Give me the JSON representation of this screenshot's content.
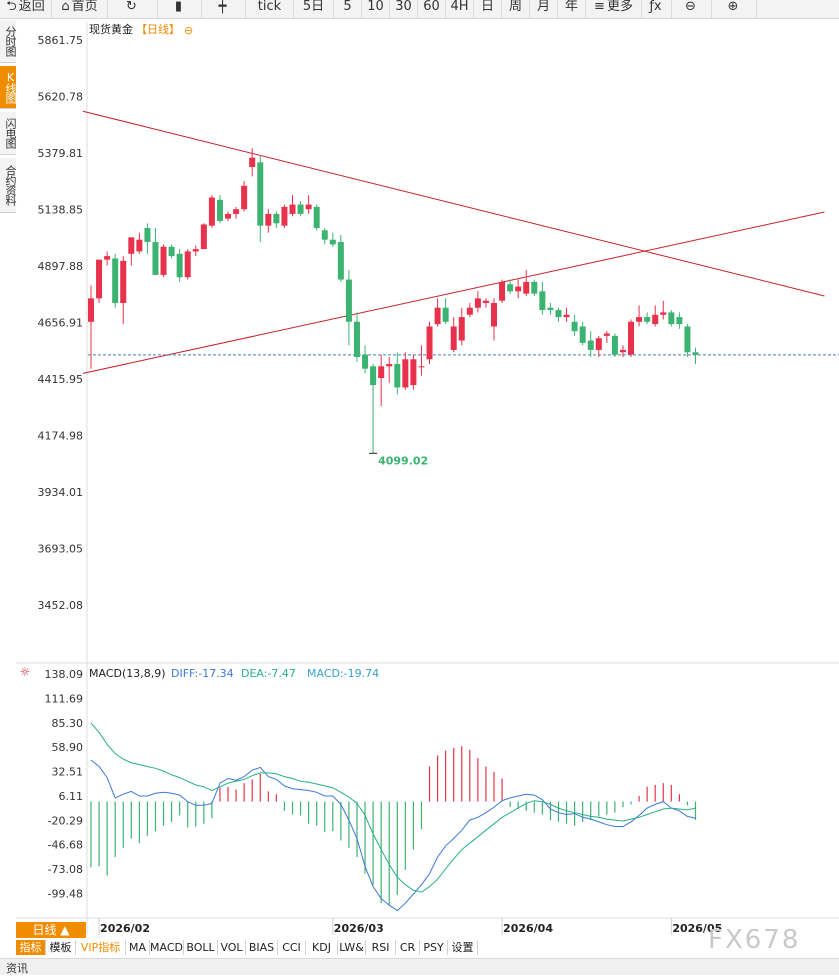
{
  "toolbar": {
    "items": [
      {
        "label": "返回",
        "icon": "back-arrow-icon"
      },
      {
        "label": "首页",
        "icon": "home-icon"
      },
      {
        "label": "",
        "icon": "refresh-icon"
      },
      {
        "label": "",
        "icon": "bar-chart-icon"
      },
      {
        "label": "",
        "icon": "candlestick-icon"
      },
      {
        "label": "tick",
        "icon": ""
      },
      {
        "label": "5日",
        "icon": ""
      },
      {
        "label": "5",
        "icon": ""
      },
      {
        "label": "10",
        "icon": ""
      },
      {
        "label": "30",
        "icon": ""
      },
      {
        "label": "60",
        "icon": ""
      },
      {
        "label": "4H",
        "icon": ""
      },
      {
        "label": "日",
        "icon": ""
      },
      {
        "label": "周",
        "icon": ""
      },
      {
        "label": "月",
        "icon": ""
      },
      {
        "label": "年",
        "icon": ""
      },
      {
        "label": "更多",
        "icon": "menu-icon"
      },
      {
        "label": "",
        "icon": "function-icon"
      },
      {
        "label": "",
        "icon": "zoom-out-icon"
      },
      {
        "label": "",
        "icon": "zoom-in-icon"
      }
    ]
  },
  "side_tabs": [
    "分时图",
    "K线图",
    "闪电图",
    "合约资料"
  ],
  "side_tab_active": 1,
  "header": {
    "title": "现货黄金",
    "period_label": "【日线】",
    "collapse_symbol": "⊖"
  },
  "colors": {
    "up": "#e8314a",
    "down": "#3cb371",
    "trendline": "#c8202a",
    "price_line": "#4a7fb0",
    "diff_line": "#3c78d8",
    "dea_line": "#27ae8a",
    "accent": "#f08c00"
  },
  "macd_header": {
    "name": "MACD(13,8,9)",
    "diff_label": "DIFF:-17.34",
    "dea_label": "DEA:-7.47",
    "macd_label": "MACD:-19.74"
  },
  "period_tag": "日线 ▲",
  "indicator_tabs": [
    "指标",
    "模板",
    "VIP指标",
    "MA",
    "MACD",
    "BOLL",
    "VOL",
    "BIAS",
    "CCI",
    "KDJ",
    "LW&",
    "RSI",
    "CR",
    "PSY",
    "设置"
  ],
  "indicator_active": 0,
  "watermark": "FX678",
  "bottom_strip_text": "资讯",
  "chart_data": [
    {
      "type": "candlestick",
      "title": "现货黄金",
      "y_ticks": [
        "5861.75",
        "5620.78",
        "5379.81",
        "5138.85",
        "4897.88",
        "4656.91",
        "4415.95",
        "4174.98",
        "3934.01",
        "3693.05",
        "3452.08"
      ],
      "ylim": [
        3452.08,
        5861.75
      ],
      "x_labels": [
        "2026/02",
        "2026/03",
        "2026/04",
        "2026/05"
      ],
      "x_label_index": [
        1,
        30,
        51,
        72
      ],
      "low_annotation": {
        "index": 35,
        "label": "4099.02",
        "value": 4099.02
      },
      "current_price": 4519,
      "trendlines": [
        {
          "from": {
            "index": -1,
            "value": 5558
          },
          "to": {
            "index": 91,
            "value": 4770
          }
        },
        {
          "from": {
            "index": -1,
            "value": 4440
          },
          "to": {
            "index": 91,
            "value": 5128
          }
        }
      ],
      "candles": [
        {
          "o": 4660,
          "h": 4815,
          "l": 4460,
          "c": 4760
        },
        {
          "o": 4760,
          "h": 4910,
          "l": 4740,
          "c": 4925
        },
        {
          "o": 4925,
          "h": 4960,
          "l": 4900,
          "c": 4940
        },
        {
          "o": 4930,
          "h": 4950,
          "l": 4720,
          "c": 4740
        },
        {
          "o": 4740,
          "h": 4940,
          "l": 4650,
          "c": 4920
        },
        {
          "o": 4950,
          "h": 5020,
          "l": 4900,
          "c": 5020
        },
        {
          "o": 4960,
          "h": 5040,
          "l": 4950,
          "c": 5010
        },
        {
          "o": 5060,
          "h": 5080,
          "l": 4950,
          "c": 5000
        },
        {
          "o": 5000,
          "h": 5060,
          "l": 4860,
          "c": 4860
        },
        {
          "o": 4860,
          "h": 4990,
          "l": 4850,
          "c": 4980
        },
        {
          "o": 4980,
          "h": 4990,
          "l": 4930,
          "c": 4940
        },
        {
          "o": 4950,
          "h": 4970,
          "l": 4830,
          "c": 4850
        },
        {
          "o": 4850,
          "h": 4970,
          "l": 4840,
          "c": 4960
        },
        {
          "o": 4960,
          "h": 4985,
          "l": 4940,
          "c": 4970
        },
        {
          "o": 4970,
          "h": 5080,
          "l": 4970,
          "c": 5075
        },
        {
          "o": 5070,
          "h": 5200,
          "l": 5060,
          "c": 5190
        },
        {
          "o": 5180,
          "h": 5200,
          "l": 5080,
          "c": 5090
        },
        {
          "o": 5100,
          "h": 5130,
          "l": 5090,
          "c": 5120
        },
        {
          "o": 5120,
          "h": 5150,
          "l": 5100,
          "c": 5140
        },
        {
          "o": 5140,
          "h": 5260,
          "l": 5130,
          "c": 5240
        },
        {
          "o": 5320,
          "h": 5400,
          "l": 5280,
          "c": 5360
        },
        {
          "o": 5340,
          "h": 5370,
          "l": 5000,
          "c": 5070
        },
        {
          "o": 5070,
          "h": 5140,
          "l": 5040,
          "c": 5120
        },
        {
          "o": 5120,
          "h": 5130,
          "l": 5060,
          "c": 5080
        },
        {
          "o": 5070,
          "h": 5160,
          "l": 5060,
          "c": 5150
        },
        {
          "o": 5120,
          "h": 5200,
          "l": 5110,
          "c": 5160
        },
        {
          "o": 5160,
          "h": 5175,
          "l": 5110,
          "c": 5120
        },
        {
          "o": 5140,
          "h": 5200,
          "l": 5120,
          "c": 5160
        },
        {
          "o": 5150,
          "h": 5160,
          "l": 5050,
          "c": 5060
        },
        {
          "o": 5050,
          "h": 5060,
          "l": 4990,
          "c": 5010
        },
        {
          "o": 5010,
          "h": 5040,
          "l": 4980,
          "c": 4990
        },
        {
          "o": 5000,
          "h": 5030,
          "l": 4830,
          "c": 4840
        },
        {
          "o": 4840,
          "h": 4880,
          "l": 4560,
          "c": 4660
        },
        {
          "o": 4660,
          "h": 4700,
          "l": 4490,
          "c": 4510
        },
        {
          "o": 4520,
          "h": 4560,
          "l": 4440,
          "c": 4460
        },
        {
          "o": 4470,
          "h": 4480,
          "l": 4099,
          "c": 4390
        },
        {
          "o": 4420,
          "h": 4520,
          "l": 4300,
          "c": 4470
        },
        {
          "o": 4470,
          "h": 4510,
          "l": 4400,
          "c": 4480
        },
        {
          "o": 4480,
          "h": 4530,
          "l": 4350,
          "c": 4380
        },
        {
          "o": 4380,
          "h": 4530,
          "l": 4370,
          "c": 4500
        },
        {
          "o": 4390,
          "h": 4520,
          "l": 4370,
          "c": 4500
        },
        {
          "o": 4470,
          "h": 4560,
          "l": 4430,
          "c": 4470
        },
        {
          "o": 4500,
          "h": 4660,
          "l": 4480,
          "c": 4640
        },
        {
          "o": 4650,
          "h": 4760,
          "l": 4640,
          "c": 4720
        },
        {
          "o": 4720,
          "h": 4760,
          "l": 4650,
          "c": 4660
        },
        {
          "o": 4540,
          "h": 4680,
          "l": 4530,
          "c": 4640
        },
        {
          "o": 4580,
          "h": 4720,
          "l": 4560,
          "c": 4680
        },
        {
          "o": 4690,
          "h": 4740,
          "l": 4680,
          "c": 4720
        },
        {
          "o": 4720,
          "h": 4790,
          "l": 4700,
          "c": 4760
        },
        {
          "o": 4740,
          "h": 4760,
          "l": 4720,
          "c": 4750
        },
        {
          "o": 4640,
          "h": 4760,
          "l": 4580,
          "c": 4740
        },
        {
          "o": 4750,
          "h": 4840,
          "l": 4740,
          "c": 4830
        },
        {
          "o": 4820,
          "h": 4840,
          "l": 4780,
          "c": 4790
        },
        {
          "o": 4790,
          "h": 4840,
          "l": 4760,
          "c": 4810
        },
        {
          "o": 4780,
          "h": 4880,
          "l": 4770,
          "c": 4830
        },
        {
          "o": 4830,
          "h": 4840,
          "l": 4770,
          "c": 4780
        },
        {
          "o": 4790,
          "h": 4830,
          "l": 4690,
          "c": 4710
        },
        {
          "o": 4720,
          "h": 4740,
          "l": 4690,
          "c": 4710
        },
        {
          "o": 4710,
          "h": 4720,
          "l": 4660,
          "c": 4680
        },
        {
          "o": 4680,
          "h": 4720,
          "l": 4660,
          "c": 4690
        },
        {
          "o": 4660,
          "h": 4690,
          "l": 4600,
          "c": 4620
        },
        {
          "o": 4640,
          "h": 4660,
          "l": 4560,
          "c": 4570
        },
        {
          "o": 4580,
          "h": 4620,
          "l": 4510,
          "c": 4540
        },
        {
          "o": 4540,
          "h": 4600,
          "l": 4510,
          "c": 4590
        },
        {
          "o": 4600,
          "h": 4620,
          "l": 4570,
          "c": 4610
        },
        {
          "o": 4600,
          "h": 4610,
          "l": 4510,
          "c": 4520
        },
        {
          "o": 4530,
          "h": 4560,
          "l": 4510,
          "c": 4540
        },
        {
          "o": 4520,
          "h": 4670,
          "l": 4510,
          "c": 4660
        },
        {
          "o": 4660,
          "h": 4730,
          "l": 4640,
          "c": 4680
        },
        {
          "o": 4680,
          "h": 4700,
          "l": 4650,
          "c": 4660
        },
        {
          "o": 4650,
          "h": 4730,
          "l": 4640,
          "c": 4690
        },
        {
          "o": 4690,
          "h": 4750,
          "l": 4670,
          "c": 4700
        },
        {
          "o": 4700,
          "h": 4710,
          "l": 4640,
          "c": 4650
        },
        {
          "o": 4680,
          "h": 4700,
          "l": 4630,
          "c": 4650
        },
        {
          "o": 4640,
          "h": 4650,
          "l": 4510,
          "c": 4530
        },
        {
          "o": 4530,
          "h": 4550,
          "l": 4480,
          "c": 4519
        }
      ]
    },
    {
      "type": "macd",
      "title": "MACD(13,8,9)",
      "y_ticks": [
        "138.09",
        "111.69",
        "85.30",
        "58.90",
        "32.51",
        "6.11",
        "-20.29",
        "-46.68",
        "-73.08",
        "-99.48"
      ],
      "ylim": [
        -126,
        150
      ],
      "series": [
        {
          "name": "DIFF",
          "values": [
            45,
            38,
            26,
            4,
            8,
            11,
            6,
            6,
            9,
            10,
            9,
            7,
            0,
            -4,
            -4,
            -2,
            20,
            25,
            23,
            27,
            34,
            37,
            27,
            24,
            17,
            14,
            13,
            12,
            10,
            6,
            6,
            -3,
            -20,
            -40,
            -70,
            -92,
            -105,
            -112,
            -118,
            -110,
            -100,
            -90,
            -78,
            -60,
            -48,
            -40,
            -31,
            -20,
            -17,
            -12,
            -6,
            1,
            4,
            6,
            8,
            7,
            2,
            -8,
            -12,
            -14,
            -13,
            -17,
            -19,
            -22,
            -25,
            -27,
            -27,
            -22,
            -15,
            -7,
            -3,
            0,
            -7,
            -10,
            -16,
            -18
          ]
        },
        {
          "name": "DEA",
          "values": [
            85,
            75,
            62,
            52,
            46,
            42,
            40,
            38,
            36,
            33,
            29,
            26,
            22,
            18,
            16,
            12,
            16,
            20,
            22,
            24,
            28,
            31,
            31,
            30,
            27,
            25,
            22,
            21,
            19,
            17,
            15,
            10,
            5,
            -2,
            -15,
            -35,
            -52,
            -68,
            -82,
            -90,
            -96,
            -98,
            -92,
            -84,
            -73,
            -62,
            -52,
            -45,
            -38,
            -31,
            -24,
            -17,
            -12,
            -7,
            -2,
            1,
            0,
            -3,
            -7,
            -10,
            -12,
            -14,
            -16,
            -17,
            -19,
            -20,
            -21,
            -19,
            -17,
            -14,
            -11,
            -8,
            -7,
            -8,
            -9,
            -7
          ]
        },
        {
          "name": "MACD",
          "values": [
            -71,
            -70,
            -80,
            -60,
            -50,
            -40,
            -45,
            -37,
            -32,
            -26,
            -22,
            -15,
            -28,
            -27,
            -24,
            -18,
            15,
            16,
            13,
            20,
            24,
            30,
            11,
            8,
            -10,
            -14,
            -15,
            -24,
            -26,
            -33,
            -32,
            -42,
            -50,
            -60,
            -78,
            -90,
            -110,
            -112,
            -101,
            -74,
            -52,
            -30,
            38,
            50,
            55,
            58,
            60,
            56,
            47,
            38,
            32,
            25,
            -6,
            -8,
            -10,
            -12,
            -14,
            -20,
            -22,
            -24,
            -26,
            -22,
            -20,
            -16,
            -14,
            -12,
            -6,
            -3,
            6,
            16,
            18,
            20,
            18,
            8,
            -4,
            -19.74
          ]
        }
      ]
    }
  ]
}
